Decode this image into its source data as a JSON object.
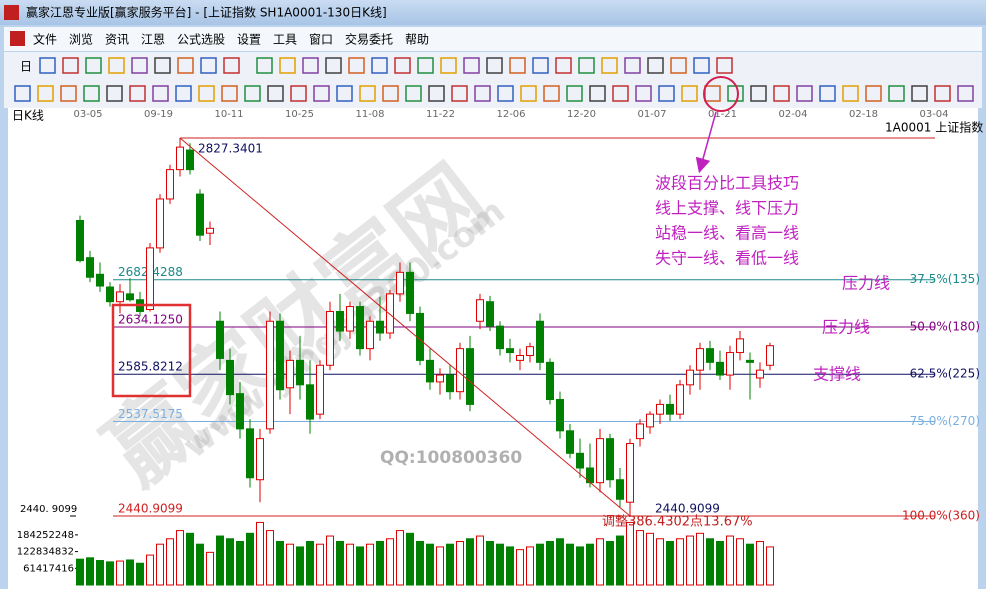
{
  "window": {
    "title": "赢家江恩专业版[赢家服务平台] - [上证指数 SH1A0001-130日K线]"
  },
  "menu": [
    "文件",
    "浏览",
    "资讯",
    "江恩",
    "公式选股",
    "设置",
    "工具",
    "窗口",
    "交易委托",
    "帮助"
  ],
  "toolbar": {
    "label": "日"
  },
  "chart": {
    "type": "candlestick",
    "period_label": "日K线",
    "symbol_label": "1A0001 上证指数",
    "dates": [
      "03-05",
      "09-19",
      "10-11",
      "10-25",
      "11-08",
      "11-22",
      "12-06",
      "12-20",
      "01-07",
      "01-21",
      "02-04",
      "02-18",
      "03-04"
    ],
    "ylim": [
      2440.91,
      2845.74
    ],
    "yticks": [
      {
        "value": 2440.9099,
        "label": "2440. 9099"
      }
    ],
    "up_color": "#e00000",
    "down_color": "#008000",
    "candles": [
      [
        2743,
        2748,
        2700,
        2702
      ],
      [
        2705,
        2712,
        2680,
        2685
      ],
      [
        2688,
        2700,
        2670,
        2676
      ],
      [
        2675,
        2680,
        2655,
        2660
      ],
      [
        2660,
        2678,
        2648,
        2670
      ],
      [
        2668,
        2684,
        2660,
        2662
      ],
      [
        2662,
        2670,
        2645,
        2650
      ],
      [
        2652,
        2720,
        2650,
        2715
      ],
      [
        2715,
        2770,
        2710,
        2765
      ],
      [
        2765,
        2800,
        2760,
        2795
      ],
      [
        2795,
        2827.3401,
        2788,
        2818
      ],
      [
        2815,
        2822,
        2790,
        2795
      ],
      [
        2770,
        2775,
        2722,
        2728
      ],
      [
        2730,
        2742,
        2718,
        2735
      ],
      [
        2640,
        2650,
        2590,
        2602
      ],
      [
        2600,
        2612,
        2555,
        2565
      ],
      [
        2566,
        2578,
        2520,
        2530
      ],
      [
        2530,
        2540,
        2470,
        2480
      ],
      [
        2478,
        2530,
        2455,
        2520
      ],
      [
        2530,
        2650,
        2525,
        2640
      ],
      [
        2640,
        2648,
        2560,
        2570
      ],
      [
        2572,
        2610,
        2545,
        2600
      ],
      [
        2600,
        2625,
        2560,
        2575
      ],
      [
        2575,
        2600,
        2525,
        2540
      ],
      [
        2545,
        2600,
        2540,
        2595
      ],
      [
        2595,
        2660,
        2590,
        2650
      ],
      [
        2650,
        2668,
        2620,
        2630
      ],
      [
        2630,
        2660,
        2622,
        2655
      ],
      [
        2655,
        2660,
        2605,
        2612
      ],
      [
        2612,
        2645,
        2600,
        2640
      ],
      [
        2640,
        2665,
        2620,
        2628
      ],
      [
        2628,
        2672,
        2622,
        2668
      ],
      [
        2668,
        2700,
        2660,
        2690
      ],
      [
        2690,
        2700,
        2640,
        2648
      ],
      [
        2648,
        2655,
        2595,
        2600
      ],
      [
        2600,
        2612,
        2570,
        2578
      ],
      [
        2578,
        2592,
        2565,
        2585
      ],
      [
        2585,
        2595,
        2560,
        2568
      ],
      [
        2568,
        2618,
        2560,
        2612
      ],
      [
        2612,
        2625,
        2548,
        2555
      ],
      [
        2640,
        2668,
        2632,
        2662
      ],
      [
        2660,
        2666,
        2630,
        2635
      ],
      [
        2635,
        2640,
        2605,
        2612
      ],
      [
        2612,
        2622,
        2598,
        2608
      ],
      [
        2600,
        2612,
        2590,
        2605
      ],
      [
        2605,
        2618,
        2598,
        2614
      ],
      [
        2640,
        2648,
        2590,
        2598
      ],
      [
        2598,
        2602,
        2555,
        2560
      ],
      [
        2560,
        2568,
        2520,
        2528
      ],
      [
        2528,
        2535,
        2500,
        2505
      ],
      [
        2505,
        2520,
        2480,
        2490
      ],
      [
        2490,
        2515,
        2470,
        2475
      ],
      [
        2475,
        2530,
        2465,
        2520
      ],
      [
        2520,
        2525,
        2470,
        2478
      ],
      [
        2478,
        2490,
        2450,
        2458
      ],
      [
        2455,
        2520,
        2440.9099,
        2515
      ],
      [
        2520,
        2540,
        2512,
        2535
      ],
      [
        2532,
        2548,
        2525,
        2545
      ],
      [
        2545,
        2560,
        2535,
        2555
      ],
      [
        2555,
        2565,
        2538,
        2545
      ],
      [
        2545,
        2580,
        2540,
        2575
      ],
      [
        2575,
        2595,
        2565,
        2590
      ],
      [
        2590,
        2618,
        2570,
        2612
      ],
      [
        2612,
        2620,
        2590,
        2598
      ],
      [
        2598,
        2610,
        2580,
        2585
      ],
      [
        2585,
        2615,
        2570,
        2608
      ],
      [
        2608,
        2630,
        2600,
        2622
      ],
      [
        2600,
        2608,
        2560,
        2598
      ],
      [
        2582,
        2598,
        2572,
        2590
      ],
      [
        2595,
        2618,
        2590,
        2615
      ]
    ],
    "volume": {
      "ylim": [
        0,
        250000000
      ],
      "yticks": [
        61417416,
        122834832,
        184252248
      ],
      "values": [
        95000000,
        100000000,
        90000000,
        85000000,
        88000000,
        92000000,
        80000000,
        110000000,
        150000000,
        170000000,
        200000000,
        190000000,
        150000000,
        120000000,
        180000000,
        170000000,
        160000000,
        190000000,
        230000000,
        200000000,
        160000000,
        150000000,
        140000000,
        160000000,
        150000000,
        180000000,
        160000000,
        150000000,
        140000000,
        150000000,
        160000000,
        170000000,
        200000000,
        190000000,
        160000000,
        150000000,
        140000000,
        150000000,
        160000000,
        170000000,
        180000000,
        160000000,
        150000000,
        140000000,
        130000000,
        140000000,
        150000000,
        160000000,
        170000000,
        150000000,
        140000000,
        150000000,
        170000000,
        160000000,
        180000000,
        230000000,
        200000000,
        190000000,
        170000000,
        160000000,
        170000000,
        180000000,
        190000000,
        170000000,
        160000000,
        180000000,
        170000000,
        150000000,
        160000000,
        140000000
      ]
    },
    "fib": {
      "high": 2827.3401,
      "high_color": "#d02020",
      "levels": [
        {
          "value": 2682.4288,
          "pct": "37.5%(135)",
          "color": "#1a8a8a"
        },
        {
          "value": 2634.125,
          "label": "2634.1250",
          "pct": "50.0%(180)",
          "color": "#800080"
        },
        {
          "value": 2585.8212,
          "pct": "62.5%(225)",
          "color": "#101060"
        },
        {
          "value": 2537.5175,
          "pct": "75.0%(270)",
          "color": "#7ab0e0"
        },
        {
          "value": 2440.9099,
          "pct": "100.0%(360)",
          "color": "#d02020"
        }
      ],
      "low_label": 2440.9099
    },
    "annotations": {
      "tips": [
        "波段百分比工具技巧",
        "线上支撑、线下压力",
        "站稳一线、看高一线",
        "失守一线、看低一线"
      ],
      "pressure_1": "压力线",
      "pressure_2": "压力线",
      "support": "支撑线",
      "adjust": "调整386.4302点13.67%",
      "qq": "QQ:100800360",
      "watermark": "赢家财富网",
      "watermark_url": "www.yingjia360.com"
    }
  }
}
